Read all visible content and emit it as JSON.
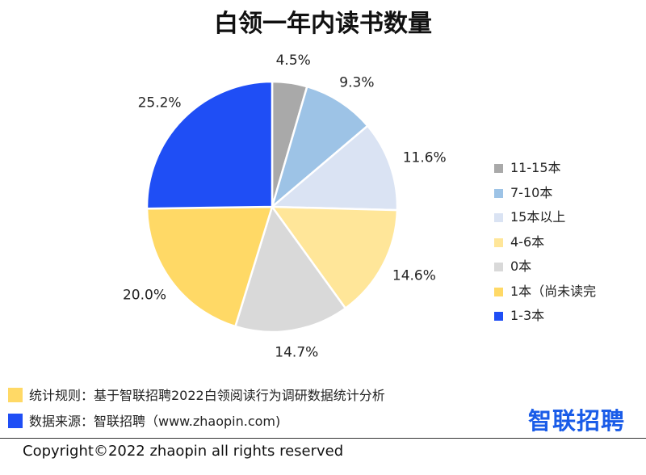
{
  "title": "白领一年内读书数量",
  "chart_data": {
    "type": "pie",
    "title": "白领一年内读书数量",
    "slices": [
      {
        "label": "11-15本",
        "value": 4.5,
        "display": "4.5%",
        "color": "#a9a9a9"
      },
      {
        "label": "7-10本",
        "value": 9.3,
        "display": "9.3%",
        "color": "#9dc3e6"
      },
      {
        "label": "15本以上",
        "value": 11.6,
        "display": "11.6%",
        "color": "#dae3f3"
      },
      {
        "label": "4-6本",
        "value": 14.6,
        "display": "14.6%",
        "color": "#ffe699"
      },
      {
        "label": "0本",
        "value": 14.7,
        "display": "14.7%",
        "color": "#d9d9d9"
      },
      {
        "label": "1本（尚未读完",
        "value": 20.0,
        "display": "20.0%",
        "color": "#ffd966"
      },
      {
        "label": "1-3本",
        "value": 25.2,
        "display": "25.2%",
        "color": "#1f4ef5"
      }
    ],
    "legend_position": "right"
  },
  "notes": [
    {
      "text": "统计规则：基于智联招聘2022白领阅读行为调研数据统计分析",
      "color": "#ffd966"
    },
    {
      "text": "数据来源：智联招聘（www.zhaopin.com)",
      "color": "#1f4ef5"
    }
  ],
  "brand": "智联招聘",
  "copyright": "Copyright©2022 zhaopin all rights reserved"
}
